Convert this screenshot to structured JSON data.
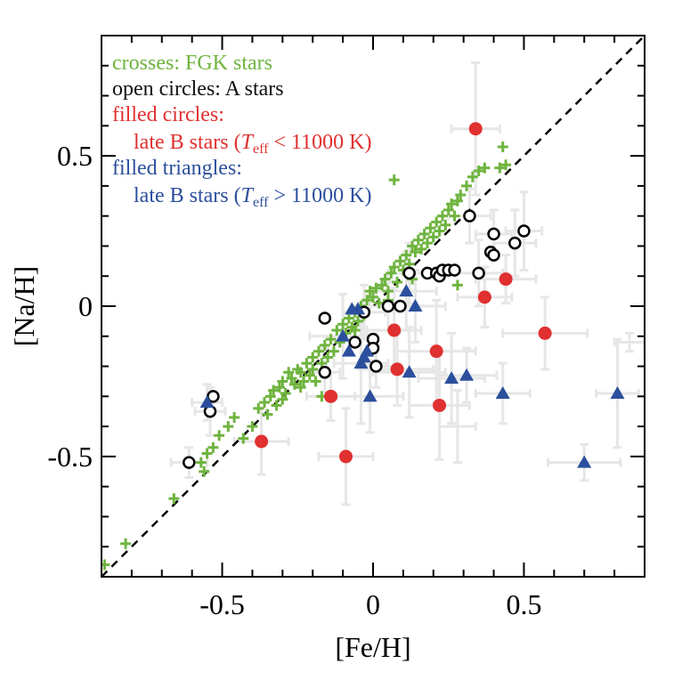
{
  "chart_data": {
    "type": "scatter",
    "xlabel": "[Fe/H]",
    "ylabel": "[Na/H]",
    "xlim": [
      -0.9,
      0.9
    ],
    "ylim": [
      -0.9,
      0.9
    ],
    "x_ticks": [
      -0.5,
      0,
      0.5
    ],
    "y_ticks": [
      -0.5,
      0,
      0.5
    ],
    "x_tick_labels": [
      "-0.5",
      "0",
      "0.5"
    ],
    "y_tick_labels": [
      "-0.5",
      "0",
      "0.5"
    ],
    "reference_line": {
      "style": "dashed",
      "color": "#000000",
      "from": [
        -0.9,
        -0.9
      ],
      "to": [
        0.9,
        0.9
      ]
    },
    "grid": false,
    "legend_position": "top-left",
    "legend": [
      {
        "text": "crosses: FGK stars",
        "color": "#6fb43f"
      },
      {
        "text": "open circles: A stars",
        "color": "#111111"
      },
      {
        "text": "filled circles:",
        "color": "#e03030"
      },
      {
        "text": "late B stars (",
        "color": "#e03030",
        "teff": true,
        "sub": "eff",
        "tail": " < 11000 K)"
      },
      {
        "text": "filled triangles:",
        "color": "#2b4f9c"
      },
      {
        "text": "late B stars (",
        "color": "#2b4f9c",
        "teff": true,
        "sub": "eff",
        "tail": " > 11000 K)"
      }
    ],
    "series": [
      {
        "marker": "cross",
        "color": "#6fb43f",
        "points": [
          [
            -0.89,
            -0.86
          ],
          [
            -0.82,
            -0.79
          ],
          [
            -0.66,
            -0.64
          ],
          [
            -0.57,
            -0.52
          ],
          [
            -0.56,
            -0.55
          ],
          [
            -0.55,
            -0.49
          ],
          [
            -0.53,
            -0.47
          ],
          [
            -0.51,
            -0.43
          ],
          [
            -0.48,
            -0.4
          ],
          [
            -0.46,
            -0.37
          ],
          [
            -0.43,
            -0.44
          ],
          [
            -0.4,
            -0.4
          ],
          [
            -0.38,
            -0.34
          ],
          [
            -0.36,
            -0.32
          ],
          [
            -0.35,
            -0.36
          ],
          [
            -0.34,
            -0.3
          ],
          [
            -0.33,
            -0.28
          ],
          [
            -0.32,
            -0.33
          ],
          [
            -0.31,
            -0.27
          ],
          [
            -0.3,
            -0.31
          ],
          [
            -0.3,
            -0.25
          ],
          [
            -0.29,
            -0.29
          ],
          [
            -0.28,
            -0.22
          ],
          [
            -0.27,
            -0.24
          ],
          [
            -0.26,
            -0.26
          ],
          [
            -0.25,
            -0.21
          ],
          [
            -0.24,
            -0.27
          ],
          [
            -0.24,
            -0.22
          ],
          [
            -0.23,
            -0.25
          ],
          [
            -0.22,
            -0.19
          ],
          [
            -0.21,
            -0.23
          ],
          [
            -0.2,
            -0.17
          ],
          [
            -0.2,
            -0.21
          ],
          [
            -0.19,
            -0.25
          ],
          [
            -0.18,
            -0.15
          ],
          [
            -0.17,
            -0.19
          ],
          [
            -0.16,
            -0.13
          ],
          [
            -0.15,
            -0.17
          ],
          [
            -0.14,
            -0.11
          ],
          [
            -0.13,
            -0.15
          ],
          [
            -0.12,
            -0.08
          ],
          [
            -0.11,
            -0.12
          ],
          [
            -0.1,
            -0.06
          ],
          [
            -0.09,
            -0.09
          ],
          [
            -0.08,
            -0.04
          ],
          [
            -0.07,
            -0.07
          ],
          [
            -0.06,
            -0.02
          ],
          [
            -0.05,
            -0.05
          ],
          [
            -0.04,
            0.0
          ],
          [
            -0.03,
            -0.03
          ],
          [
            -0.02,
            0.02
          ],
          [
            -0.01,
            0.05
          ],
          [
            0.0,
            0.03
          ],
          [
            0.01,
            0.06
          ],
          [
            0.02,
            0.01
          ],
          [
            0.03,
            0.07
          ],
          [
            0.04,
            0.09
          ],
          [
            0.05,
            0.05
          ],
          [
            0.06,
            0.11
          ],
          [
            0.07,
            0.13
          ],
          [
            0.08,
            0.08
          ],
          [
            0.09,
            0.15
          ],
          [
            0.1,
            0.12
          ],
          [
            0.11,
            0.17
          ],
          [
            0.12,
            0.14
          ],
          [
            0.13,
            0.2
          ],
          [
            0.14,
            0.18
          ],
          [
            0.15,
            0.22
          ],
          [
            0.16,
            0.19
          ],
          [
            0.17,
            0.24
          ],
          [
            0.18,
            0.21
          ],
          [
            0.19,
            0.26
          ],
          [
            0.2,
            0.23
          ],
          [
            0.21,
            0.28
          ],
          [
            0.22,
            0.25
          ],
          [
            0.23,
            0.3
          ],
          [
            0.24,
            0.27
          ],
          [
            0.25,
            0.32
          ],
          [
            0.26,
            0.34
          ],
          [
            0.27,
            0.3
          ],
          [
            0.28,
            0.35
          ],
          [
            0.29,
            0.37
          ],
          [
            0.31,
            0.4
          ],
          [
            0.33,
            0.43
          ],
          [
            0.35,
            0.45
          ],
          [
            0.37,
            0.46
          ],
          [
            0.43,
            0.53
          ],
          [
            0.42,
            0.46
          ],
          [
            0.44,
            0.47
          ],
          [
            0.07,
            0.42
          ],
          [
            -0.17,
            -0.3
          ],
          [
            -0.06,
            -0.08
          ],
          [
            0.28,
            0.07
          ],
          [
            0.05,
            0.02
          ],
          [
            0.13,
            0.09
          ]
        ]
      },
      {
        "marker": "open-circle",
        "color": "#000000",
        "points": [
          [
            -0.61,
            -0.52
          ],
          [
            -0.54,
            -0.35
          ],
          [
            -0.53,
            -0.3
          ],
          [
            -0.16,
            -0.22
          ],
          [
            -0.16,
            -0.04
          ],
          [
            -0.06,
            -0.12
          ],
          [
            -0.03,
            -0.02
          ],
          [
            0.0,
            -0.11
          ],
          [
            0.0,
            -0.14
          ],
          [
            0.01,
            -0.2
          ],
          [
            0.05,
            0.0
          ],
          [
            0.09,
            0.0
          ],
          [
            0.12,
            0.11
          ],
          [
            0.18,
            0.11
          ],
          [
            0.21,
            0.11
          ],
          [
            0.22,
            0.1
          ],
          [
            0.23,
            0.12
          ],
          [
            0.25,
            0.12
          ],
          [
            0.27,
            0.12
          ],
          [
            0.32,
            0.3
          ],
          [
            0.35,
            0.11
          ],
          [
            0.39,
            0.18
          ],
          [
            0.4,
            0.17
          ],
          [
            0.4,
            0.24
          ],
          [
            0.47,
            0.21
          ],
          [
            0.5,
            0.25
          ]
        ]
      },
      {
        "marker": "filled-circle",
        "color": "#e03030",
        "points": [
          [
            -0.37,
            -0.45
          ],
          [
            -0.14,
            -0.3
          ],
          [
            -0.09,
            -0.5
          ],
          [
            0.07,
            -0.08
          ],
          [
            0.08,
            -0.21
          ],
          [
            0.21,
            -0.15
          ],
          [
            0.22,
            -0.33
          ],
          [
            0.34,
            0.59
          ],
          [
            0.37,
            0.03
          ],
          [
            0.44,
            0.09
          ],
          [
            0.57,
            -0.09
          ]
        ]
      },
      {
        "marker": "filled-triangle",
        "color": "#2b4f9c",
        "points": [
          [
            -0.55,
            -0.32
          ],
          [
            -0.1,
            -0.1
          ],
          [
            -0.08,
            -0.15
          ],
          [
            -0.07,
            -0.01
          ],
          [
            -0.05,
            -0.01
          ],
          [
            -0.04,
            -0.19
          ],
          [
            -0.03,
            -0.17
          ],
          [
            -0.02,
            -0.15
          ],
          [
            -0.01,
            -0.3
          ],
          [
            0.11,
            0.05
          ],
          [
            0.12,
            -0.22
          ],
          [
            0.14,
            0.0
          ],
          [
            0.26,
            -0.24
          ],
          [
            0.31,
            -0.23
          ],
          [
            0.43,
            -0.29
          ],
          [
            0.7,
            -0.52
          ],
          [
            0.81,
            -0.29
          ]
        ]
      }
    ],
    "error_bars": [
      [
        0.34,
        0.59,
        0.08,
        0.22
      ],
      [
        0.57,
        -0.09,
        0.14,
        0.12
      ],
      [
        0.44,
        0.09,
        0.1,
        0.08
      ],
      [
        0.37,
        0.03,
        0.09,
        0.1
      ],
      [
        0.81,
        -0.29,
        0.07,
        0.18
      ],
      [
        0.7,
        -0.52,
        0.12,
        0.06
      ],
      [
        0.43,
        -0.29,
        0.09,
        0.1
      ],
      [
        0.31,
        -0.23,
        0.1,
        0.09
      ],
      [
        0.26,
        -0.24,
        0.11,
        0.15
      ],
      [
        0.22,
        -0.33,
        0.1,
        0.18
      ],
      [
        0.21,
        -0.15,
        0.13,
        0.17
      ],
      [
        0.08,
        -0.21,
        0.12,
        0.12
      ],
      [
        0.07,
        -0.08,
        0.09,
        0.14
      ],
      [
        -0.09,
        -0.5,
        0.09,
        0.16
      ],
      [
        -0.14,
        -0.3,
        0.08,
        0.08
      ],
      [
        -0.37,
        -0.45,
        0.09,
        0.11
      ],
      [
        0.14,
        0.0,
        0.1,
        0.12
      ],
      [
        0.12,
        -0.22,
        0.12,
        0.15
      ],
      [
        0.11,
        0.05,
        0.1,
        0.13
      ],
      [
        -0.01,
        -0.3,
        0.11,
        0.12
      ],
      [
        -0.04,
        -0.19,
        0.09,
        0.2
      ],
      [
        -0.1,
        -0.1,
        0.11,
        0.14
      ],
      [
        -0.55,
        -0.32,
        0.05,
        0.06
      ],
      [
        0.5,
        0.25,
        0.06,
        0.13
      ],
      [
        0.47,
        0.21,
        0.07,
        0.11
      ],
      [
        0.4,
        0.24,
        0.06,
        0.08
      ],
      [
        0.35,
        0.11,
        0.08,
        0.11
      ],
      [
        0.32,
        0.3,
        0.07,
        0.09
      ],
      [
        0.12,
        0.11,
        0.07,
        0.1
      ],
      [
        0.05,
        0.0,
        0.06,
        0.08
      ],
      [
        0.01,
        -0.2,
        0.06,
        0.07
      ],
      [
        -0.03,
        -0.02,
        0.07,
        0.09
      ],
      [
        -0.16,
        -0.22,
        0.05,
        0.08
      ],
      [
        -0.61,
        -0.52,
        0.06,
        0.05
      ],
      [
        -0.54,
        -0.35,
        0.05,
        0.08
      ],
      [
        0.85,
        -0.12,
        0.05,
        0.03
      ],
      [
        0.28,
        -0.4,
        0.06,
        0.12
      ]
    ]
  }
}
